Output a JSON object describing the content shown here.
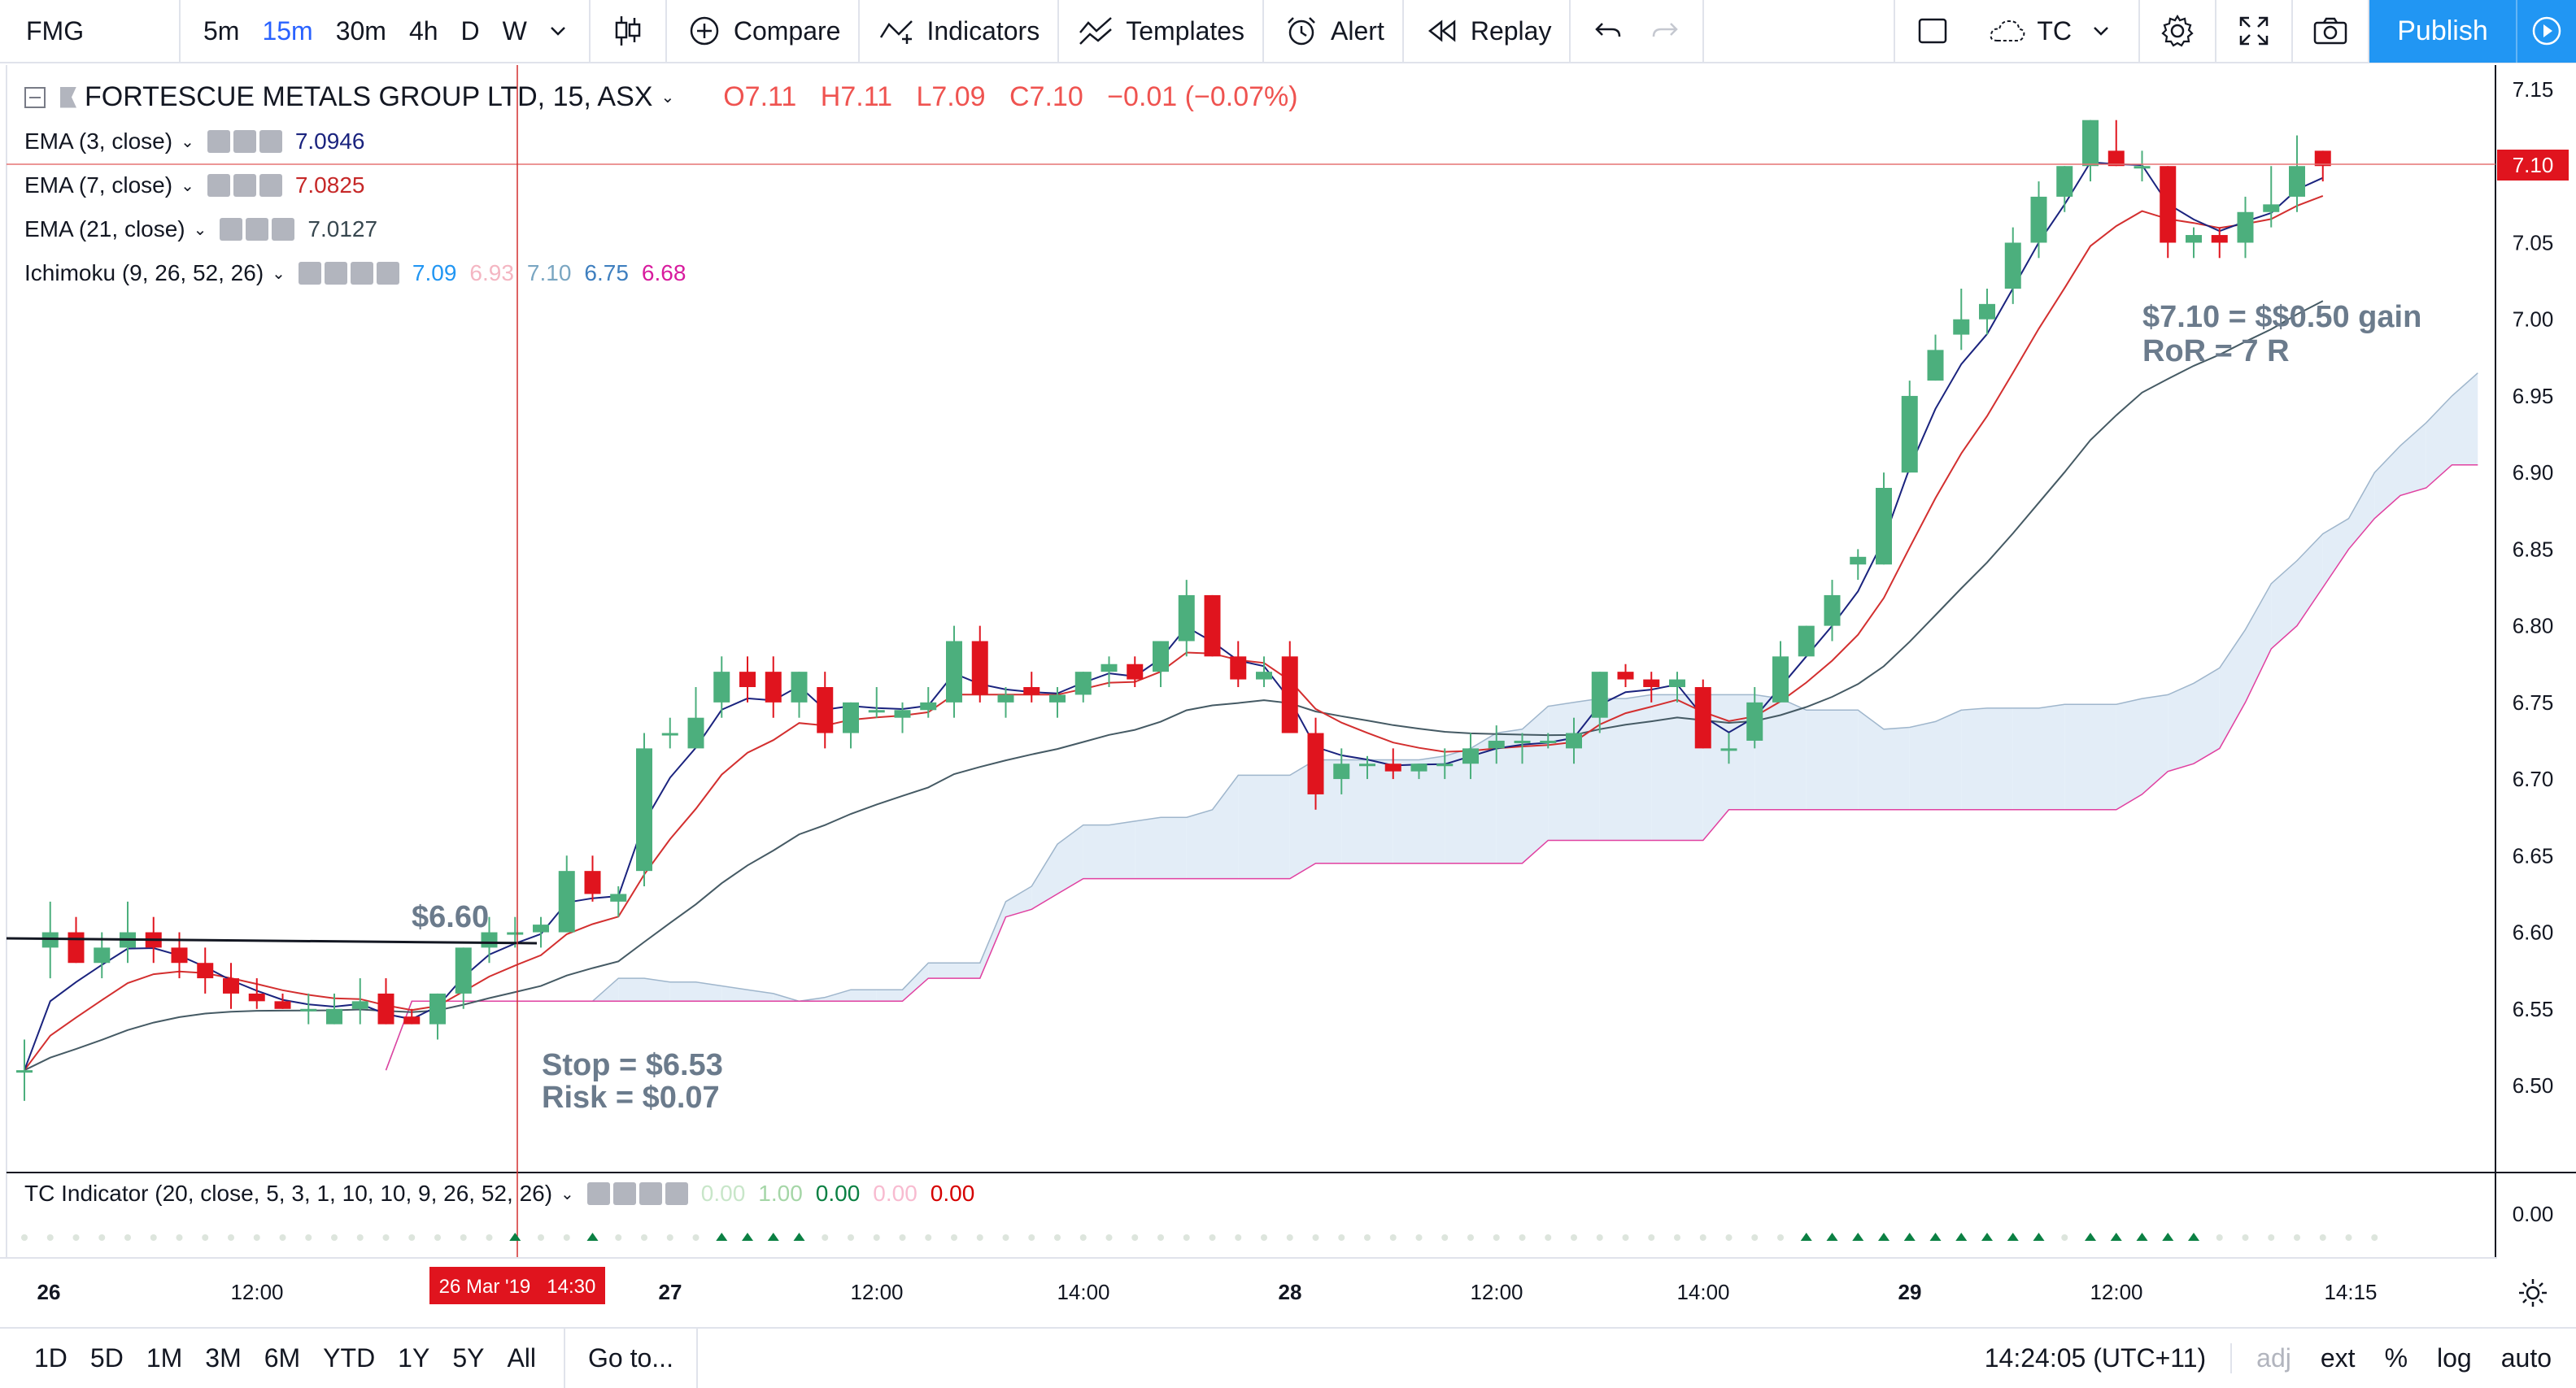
{
  "toolbar": {
    "symbol": "FMG",
    "intervals": [
      "5m",
      "15m",
      "30m",
      "4h",
      "D",
      "W"
    ],
    "active_interval": "15m",
    "compare": "Compare",
    "indicators": "Indicators",
    "templates": "Templates",
    "alert": "Alert",
    "replay": "Replay",
    "layout_name": "TC",
    "publish": "Publish"
  },
  "legend": {
    "title": "FORTESCUE METALS GROUP LTD, 15, ASX",
    "open": "O7.11",
    "high": "H7.11",
    "low": "L7.09",
    "close": "C7.10",
    "change": "−0.01 (−0.07%)",
    "ema3_label": "EMA (3, close)",
    "ema3_value": "7.0946",
    "ema7_label": "EMA (7, close)",
    "ema7_value": "7.0825",
    "ema21_label": "EMA (21, close)",
    "ema21_value": "7.0127",
    "ichimoku_label": "Ichimoku (9, 26, 52, 26)",
    "ichimoku_values": [
      "7.09",
      "6.93",
      "7.10",
      "6.75",
      "6.68"
    ],
    "tc_label": "TC Indicator (20, close, 5, 3, 1, 10, 10, 9, 26, 52, 26)",
    "tc_values": [
      "0.00",
      "1.00",
      "0.00",
      "0.00",
      "0.00"
    ]
  },
  "colors": {
    "up": "#4caf7d",
    "down": "#e0141e",
    "ema3": "#1a237e",
    "ema7": "#d32f2f",
    "ema21": "#455a64",
    "cloud_bull": "#e3edf7",
    "cloud_bear": "#fce4f1",
    "span_b": "#e040a0",
    "price_tag": "#e0141e",
    "ema3_val": "#1a237e",
    "ema7_val": "#c62828",
    "ema21_val": "#37474f",
    "ichi_colors": [
      "#2196f3",
      "#f4b6c2",
      "#7aa6c2",
      "#3f7fbf",
      "#d81b9e"
    ],
    "tc_colors": [
      "#c8e6c9",
      "#a5d6a7",
      "#0b8043",
      "#f8bbd0",
      "#d50000"
    ]
  },
  "annotations": {
    "entry": "$6.60",
    "stop": "Stop = $6.53",
    "risk": "Risk = $0.07",
    "gain": "$7.10 = $$0.50 gain",
    "ror": "RoR = 7 R"
  },
  "price_axis": {
    "ticks": [
      "7.15",
      "7.10",
      "7.05",
      "7.00",
      "6.95",
      "6.90",
      "6.85",
      "6.80",
      "6.75",
      "6.70",
      "6.65",
      "6.60",
      "6.55",
      "6.50"
    ],
    "current": "7.10",
    "indicator_tick": "0.00"
  },
  "time_axis": {
    "labels": [
      "26",
      "12:00",
      "27",
      "12:00",
      "14:00",
      "28",
      "12:00",
      "14:00",
      "29",
      "12:00",
      "14:15"
    ],
    "crosshair_label": "26 Mar '19   14:30"
  },
  "bottom": {
    "ranges": [
      "1D",
      "5D",
      "1M",
      "3M",
      "6M",
      "YTD",
      "1Y",
      "5Y",
      "All"
    ],
    "goto": "Go to...",
    "time": "14:24:05 (UTC+11)",
    "adj": "adj",
    "ext": "ext",
    "percent": "%",
    "log": "log",
    "auto": "auto"
  },
  "chart_data": {
    "type": "candlestick",
    "title": "FORTESCUE METALS GROUP LTD, 15, ASX",
    "ylim": [
      6.46,
      7.16
    ],
    "candles": [
      {
        "o": 6.51,
        "h": 6.53,
        "l": 6.49,
        "c": 6.51
      },
      {
        "o": 6.59,
        "h": 6.62,
        "l": 6.57,
        "c": 6.6
      },
      {
        "o": 6.6,
        "h": 6.61,
        "l": 6.58,
        "c": 6.58
      },
      {
        "o": 6.58,
        "h": 6.6,
        "l": 6.57,
        "c": 6.59
      },
      {
        "o": 6.59,
        "h": 6.62,
        "l": 6.58,
        "c": 6.6
      },
      {
        "o": 6.6,
        "h": 6.61,
        "l": 6.58,
        "c": 6.59
      },
      {
        "o": 6.59,
        "h": 6.6,
        "l": 6.57,
        "c": 6.58
      },
      {
        "o": 6.58,
        "h": 6.59,
        "l": 6.56,
        "c": 6.57
      },
      {
        "o": 6.57,
        "h": 6.58,
        "l": 6.55,
        "c": 6.56
      },
      {
        "o": 6.56,
        "h": 6.57,
        "l": 6.55,
        "c": 6.555
      },
      {
        "o": 6.555,
        "h": 6.56,
        "l": 6.55,
        "c": 6.55
      },
      {
        "o": 6.55,
        "h": 6.56,
        "l": 6.54,
        "c": 6.55
      },
      {
        "o": 6.54,
        "h": 6.56,
        "l": 6.54,
        "c": 6.55
      },
      {
        "o": 6.55,
        "h": 6.57,
        "l": 6.54,
        "c": 6.555
      },
      {
        "o": 6.56,
        "h": 6.57,
        "l": 6.54,
        "c": 6.54
      },
      {
        "o": 6.545,
        "h": 6.55,
        "l": 6.54,
        "c": 6.54
      },
      {
        "o": 6.54,
        "h": 6.56,
        "l": 6.53,
        "c": 6.56
      },
      {
        "o": 6.56,
        "h": 6.59,
        "l": 6.55,
        "c": 6.59
      },
      {
        "o": 6.59,
        "h": 6.61,
        "l": 6.58,
        "c": 6.6
      },
      {
        "o": 6.6,
        "h": 6.61,
        "l": 6.59,
        "c": 6.6
      },
      {
        "o": 6.6,
        "h": 6.61,
        "l": 6.59,
        "c": 6.605
      },
      {
        "o": 6.6,
        "h": 6.65,
        "l": 6.6,
        "c": 6.64
      },
      {
        "o": 6.64,
        "h": 6.65,
        "l": 6.62,
        "c": 6.625
      },
      {
        "o": 6.62,
        "h": 6.63,
        "l": 6.61,
        "c": 6.625
      },
      {
        "o": 6.64,
        "h": 6.73,
        "l": 6.63,
        "c": 6.72
      },
      {
        "o": 6.73,
        "h": 6.74,
        "l": 6.72,
        "c": 6.73
      },
      {
        "o": 6.72,
        "h": 6.76,
        "l": 6.72,
        "c": 6.74
      },
      {
        "o": 6.75,
        "h": 6.78,
        "l": 6.74,
        "c": 6.77
      },
      {
        "o": 6.77,
        "h": 6.78,
        "l": 6.75,
        "c": 6.76
      },
      {
        "o": 6.77,
        "h": 6.78,
        "l": 6.74,
        "c": 6.75
      },
      {
        "o": 6.75,
        "h": 6.77,
        "l": 6.74,
        "c": 6.77
      },
      {
        "o": 6.76,
        "h": 6.77,
        "l": 6.72,
        "c": 6.73
      },
      {
        "o": 6.73,
        "h": 6.75,
        "l": 6.72,
        "c": 6.75
      },
      {
        "o": 6.745,
        "h": 6.76,
        "l": 6.74,
        "c": 6.745
      },
      {
        "o": 6.74,
        "h": 6.75,
        "l": 6.73,
        "c": 6.745
      },
      {
        "o": 6.745,
        "h": 6.76,
        "l": 6.74,
        "c": 6.75
      },
      {
        "o": 6.75,
        "h": 6.8,
        "l": 6.74,
        "c": 6.79
      },
      {
        "o": 6.79,
        "h": 6.8,
        "l": 6.75,
        "c": 6.755
      },
      {
        "o": 6.75,
        "h": 6.76,
        "l": 6.74,
        "c": 6.755
      },
      {
        "o": 6.76,
        "h": 6.77,
        "l": 6.75,
        "c": 6.755
      },
      {
        "o": 6.75,
        "h": 6.76,
        "l": 6.74,
        "c": 6.755
      },
      {
        "o": 6.755,
        "h": 6.77,
        "l": 6.75,
        "c": 6.77
      },
      {
        "o": 6.77,
        "h": 6.78,
        "l": 6.76,
        "c": 6.775
      },
      {
        "o": 6.775,
        "h": 6.78,
        "l": 6.76,
        "c": 6.765
      },
      {
        "o": 6.77,
        "h": 6.79,
        "l": 6.76,
        "c": 6.79
      },
      {
        "o": 6.79,
        "h": 6.83,
        "l": 6.78,
        "c": 6.82
      },
      {
        "o": 6.82,
        "h": 6.82,
        "l": 6.78,
        "c": 6.78
      },
      {
        "o": 6.78,
        "h": 6.79,
        "l": 6.76,
        "c": 6.765
      },
      {
        "o": 6.765,
        "h": 6.78,
        "l": 6.76,
        "c": 6.77
      },
      {
        "o": 6.78,
        "h": 6.79,
        "l": 6.73,
        "c": 6.73
      },
      {
        "o": 6.73,
        "h": 6.74,
        "l": 6.68,
        "c": 6.69
      },
      {
        "o": 6.7,
        "h": 6.72,
        "l": 6.69,
        "c": 6.71
      },
      {
        "o": 6.71,
        "h": 6.715,
        "l": 6.7,
        "c": 6.71
      },
      {
        "o": 6.71,
        "h": 6.72,
        "l": 6.7,
        "c": 6.705
      },
      {
        "o": 6.705,
        "h": 6.71,
        "l": 6.7,
        "c": 6.71
      },
      {
        "o": 6.71,
        "h": 6.72,
        "l": 6.7,
        "c": 6.71
      },
      {
        "o": 6.71,
        "h": 6.73,
        "l": 6.7,
        "c": 6.72
      },
      {
        "o": 6.72,
        "h": 6.735,
        "l": 6.71,
        "c": 6.725
      },
      {
        "o": 6.725,
        "h": 6.73,
        "l": 6.71,
        "c": 6.725
      },
      {
        "o": 6.725,
        "h": 6.73,
        "l": 6.72,
        "c": 6.725
      },
      {
        "o": 6.72,
        "h": 6.74,
        "l": 6.71,
        "c": 6.73
      },
      {
        "o": 6.74,
        "h": 6.77,
        "l": 6.73,
        "c": 6.77
      },
      {
        "o": 6.77,
        "h": 6.775,
        "l": 6.76,
        "c": 6.765
      },
      {
        "o": 6.765,
        "h": 6.77,
        "l": 6.75,
        "c": 6.76
      },
      {
        "o": 6.76,
        "h": 6.77,
        "l": 6.75,
        "c": 6.765
      },
      {
        "o": 6.76,
        "h": 6.765,
        "l": 6.72,
        "c": 6.72
      },
      {
        "o": 6.72,
        "h": 6.73,
        "l": 6.71,
        "c": 6.72
      },
      {
        "o": 6.725,
        "h": 6.76,
        "l": 6.72,
        "c": 6.75
      },
      {
        "o": 6.75,
        "h": 6.79,
        "l": 6.75,
        "c": 6.78
      },
      {
        "o": 6.78,
        "h": 6.8,
        "l": 6.78,
        "c": 6.8
      },
      {
        "o": 6.8,
        "h": 6.83,
        "l": 6.79,
        "c": 6.82
      },
      {
        "o": 6.84,
        "h": 6.85,
        "l": 6.83,
        "c": 6.845
      },
      {
        "o": 6.84,
        "h": 6.9,
        "l": 6.84,
        "c": 6.89
      },
      {
        "o": 6.9,
        "h": 6.96,
        "l": 6.9,
        "c": 6.95
      },
      {
        "o": 6.96,
        "h": 6.99,
        "l": 6.96,
        "c": 6.98
      },
      {
        "o": 6.99,
        "h": 7.02,
        "l": 6.98,
        "c": 7.0
      },
      {
        "o": 7.0,
        "h": 7.02,
        "l": 6.99,
        "c": 7.01
      },
      {
        "o": 7.02,
        "h": 7.06,
        "l": 7.01,
        "c": 7.05
      },
      {
        "o": 7.05,
        "h": 7.09,
        "l": 7.04,
        "c": 7.08
      },
      {
        "o": 7.08,
        "h": 7.1,
        "l": 7.07,
        "c": 7.1
      },
      {
        "o": 7.1,
        "h": 7.13,
        "l": 7.09,
        "c": 7.13
      },
      {
        "o": 7.11,
        "h": 7.13,
        "l": 7.1,
        "c": 7.1
      },
      {
        "o": 7.1,
        "h": 7.11,
        "l": 7.09,
        "c": 7.1
      },
      {
        "o": 7.1,
        "h": 7.1,
        "l": 7.04,
        "c": 7.05
      },
      {
        "o": 7.05,
        "h": 7.06,
        "l": 7.04,
        "c": 7.055
      },
      {
        "o": 7.055,
        "h": 7.06,
        "l": 7.04,
        "c": 7.05
      },
      {
        "o": 7.05,
        "h": 7.08,
        "l": 7.04,
        "c": 7.07
      },
      {
        "o": 7.07,
        "h": 7.1,
        "l": 7.06,
        "c": 7.075
      },
      {
        "o": 7.08,
        "h": 7.12,
        "l": 7.07,
        "c": 7.1
      },
      {
        "o": 7.11,
        "h": 7.11,
        "l": 7.09,
        "c": 7.1
      }
    ]
  }
}
